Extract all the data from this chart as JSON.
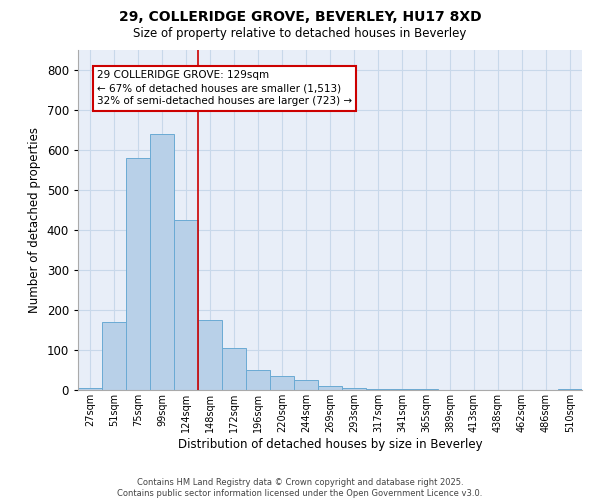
{
  "title": "29, COLLERIDGE GROVE, BEVERLEY, HU17 8XD",
  "subtitle": "Size of property relative to detached houses in Beverley",
  "xlabel": "Distribution of detached houses by size in Beverley",
  "ylabel": "Number of detached properties",
  "bar_color": "#b8d0e8",
  "bar_edge_color": "#6aaad4",
  "grid_color": "#c8d8ea",
  "background_color": "#e8eef8",
  "categories": [
    "27sqm",
    "51sqm",
    "75sqm",
    "99sqm",
    "124sqm",
    "148sqm",
    "172sqm",
    "196sqm",
    "220sqm",
    "244sqm",
    "269sqm",
    "293sqm",
    "317sqm",
    "341sqm",
    "365sqm",
    "389sqm",
    "413sqm",
    "438sqm",
    "462sqm",
    "486sqm",
    "510sqm"
  ],
  "values": [
    5,
    170,
    580,
    640,
    425,
    175,
    105,
    50,
    35,
    25,
    10,
    5,
    3,
    3,
    2,
    0,
    0,
    0,
    0,
    0,
    2
  ],
  "ylim": [
    0,
    850
  ],
  "yticks": [
    0,
    100,
    200,
    300,
    400,
    500,
    600,
    700,
    800
  ],
  "property_line_x": 4.5,
  "property_line_color": "#cc0000",
  "annotation_text": "29 COLLERIDGE GROVE: 129sqm\n← 67% of detached houses are smaller (1,513)\n32% of semi-detached houses are larger (723) →",
  "annotation_box_color": "#cc0000",
  "footer_line1": "Contains HM Land Registry data © Crown copyright and database right 2025.",
  "footer_line2": "Contains public sector information licensed under the Open Government Licence v3.0."
}
